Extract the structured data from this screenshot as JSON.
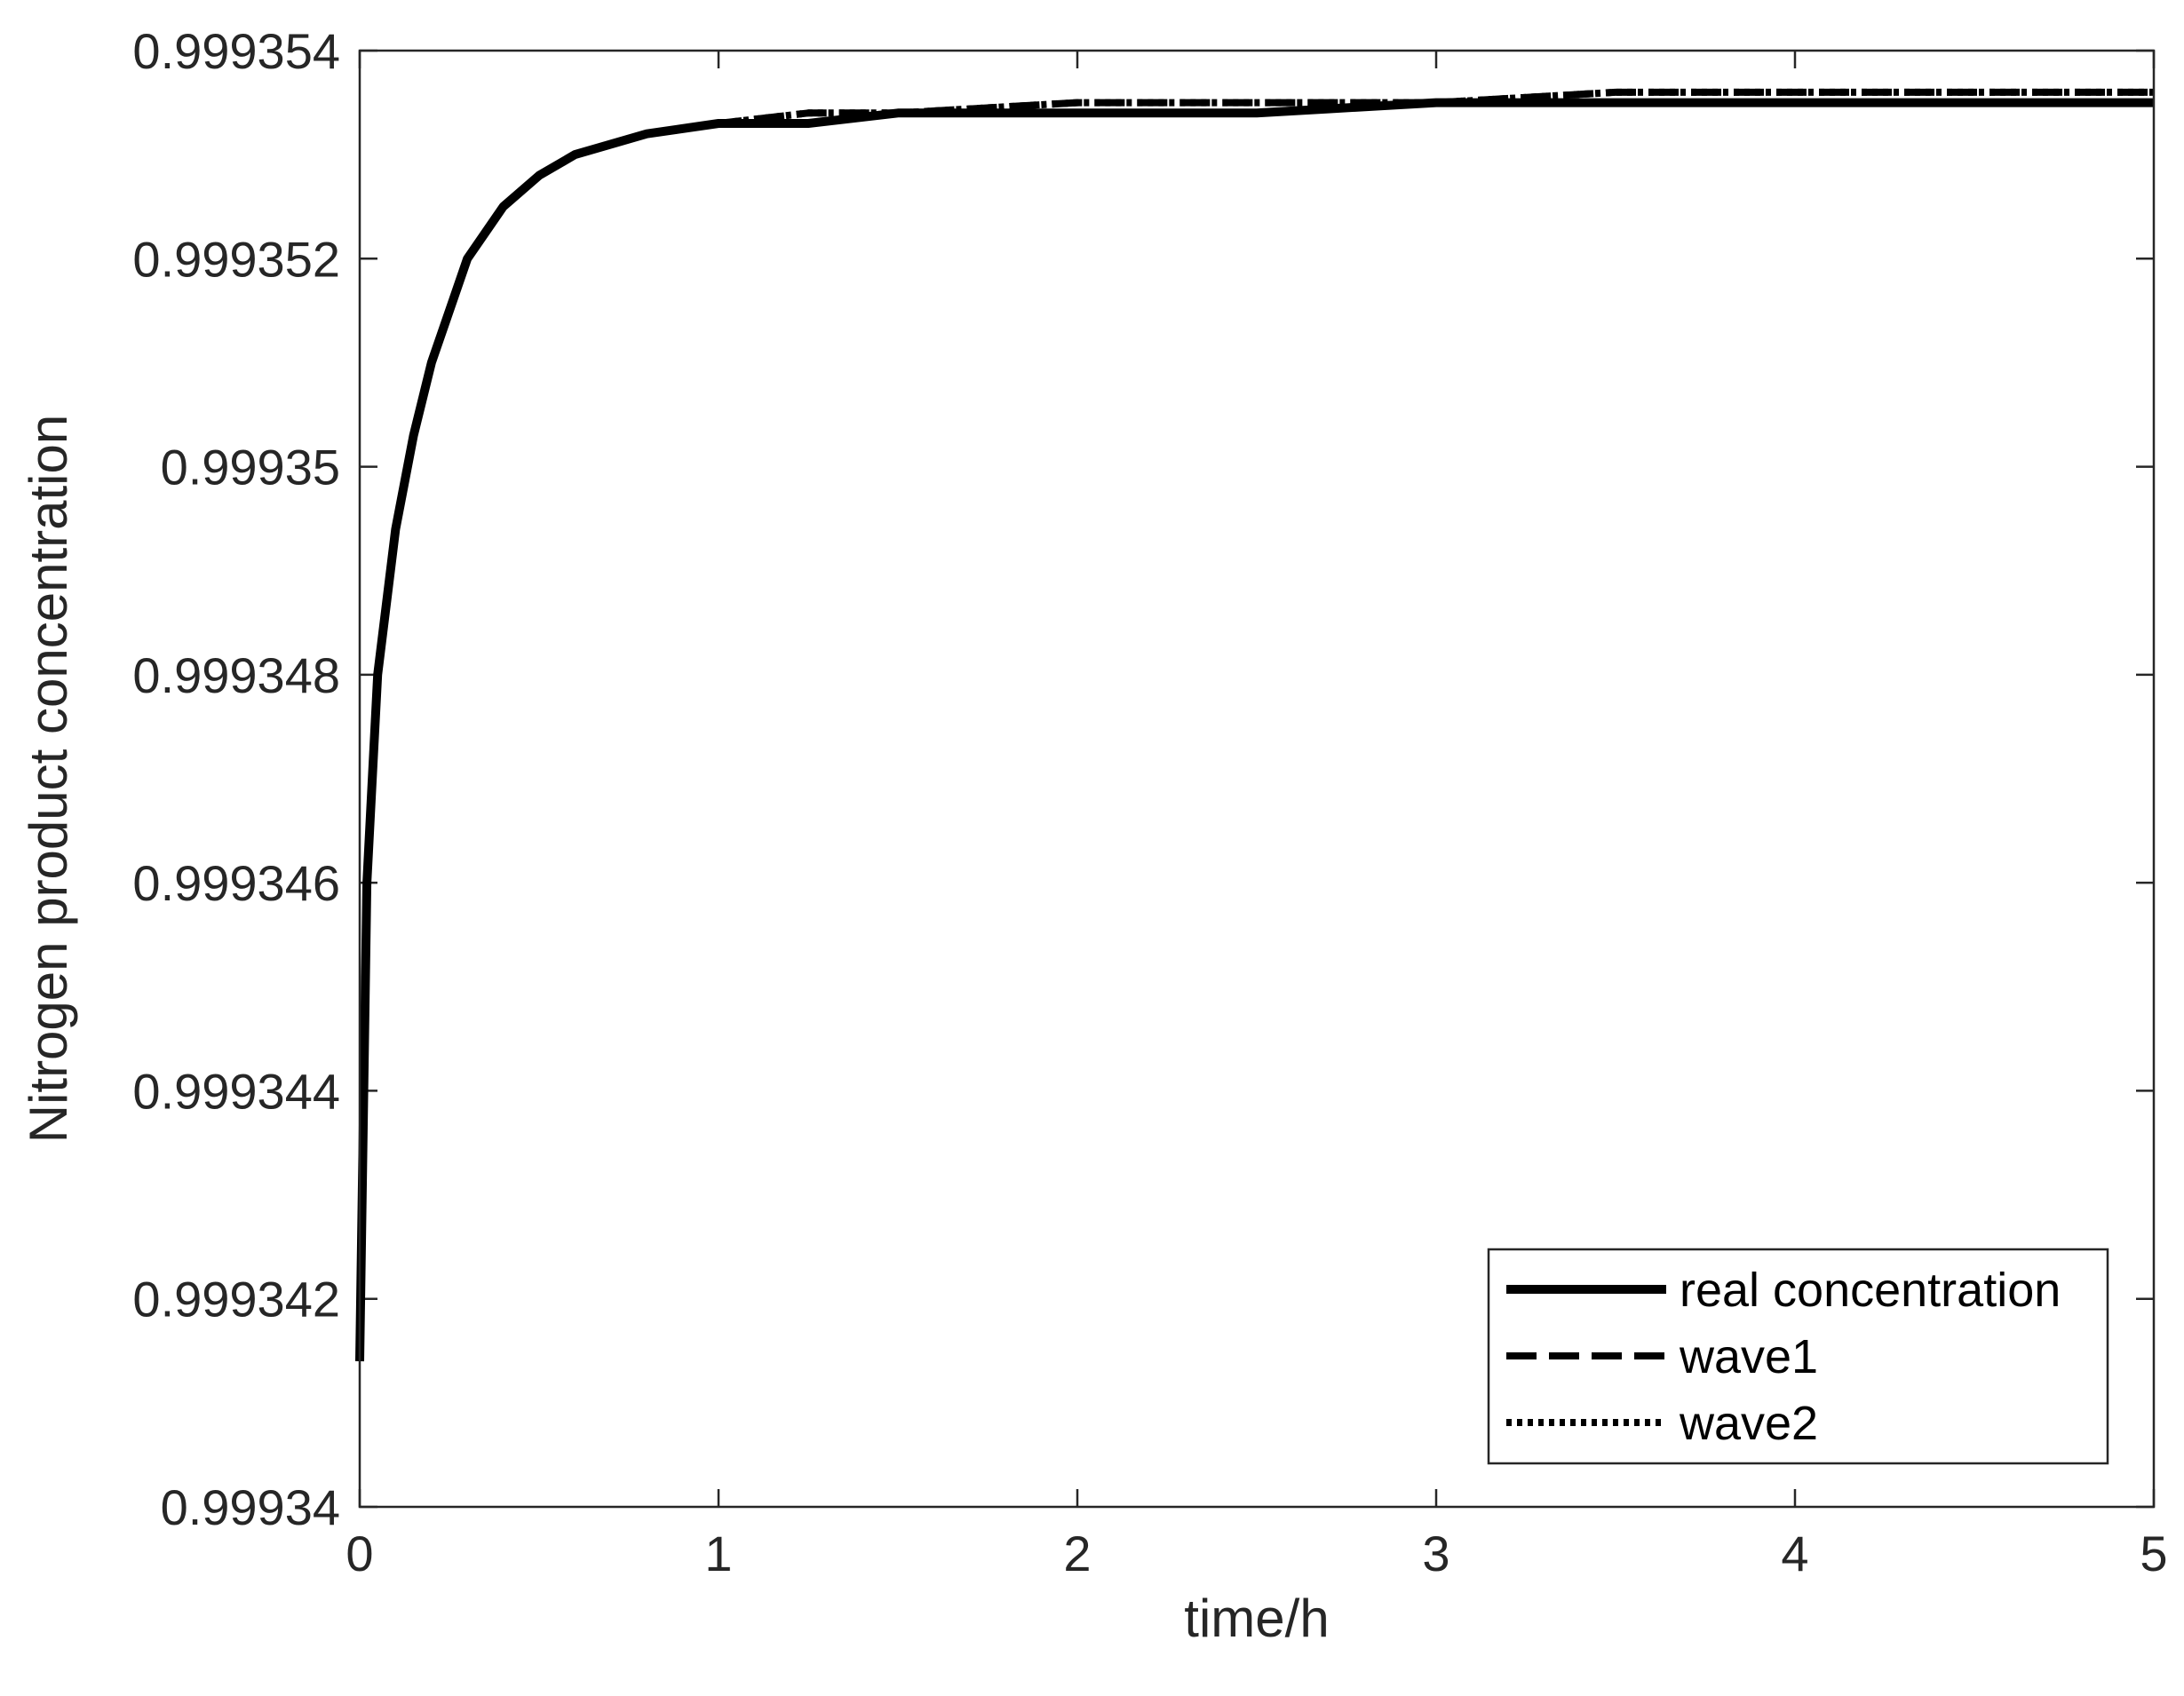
{
  "chart_data": {
    "type": "line",
    "title": "",
    "xlabel": "time/h",
    "ylabel": "Nitrogen product concentration",
    "xlim": [
      0,
      5
    ],
    "ylim": [
      0.99934,
      0.999354
    ],
    "xticks": [
      0,
      1,
      2,
      3,
      4,
      5
    ],
    "xtick_labels": [
      "0",
      "1",
      "2",
      "3",
      "4",
      "5"
    ],
    "yticks": [
      0.99934,
      0.999342,
      0.999344,
      0.999346,
      0.999348,
      0.99935,
      0.999352,
      0.999354
    ],
    "ytick_labels": [
      "0.99934",
      "0.999342",
      "0.999344",
      "0.999346",
      "0.999348",
      "0.99935",
      "0.999352",
      "0.999354"
    ],
    "grid": false,
    "legend_position": "bottom-right",
    "x": [
      0,
      0.02,
      0.05,
      0.1,
      0.15,
      0.2,
      0.3,
      0.4,
      0.5,
      0.6,
      0.8,
      1.0,
      1.25,
      1.5,
      2.0,
      2.5,
      3.0,
      3.5,
      4.0,
      4.5,
      5.0
    ],
    "series": [
      {
        "name": "real concentration",
        "style": "solid",
        "color": "#000000",
        "values": [
          0.9993414,
          0.999346,
          0.999348,
          0.9993494,
          0.9993503,
          0.999351,
          0.999352,
          0.9993525,
          0.9993528,
          0.999353,
          0.9993532,
          0.9993533,
          0.9993533,
          0.9993534,
          0.9993534,
          0.9993534,
          0.9993535,
          0.9993535,
          0.9993535,
          0.9993535,
          0.9993535
        ]
      },
      {
        "name": "wave1",
        "style": "dashed",
        "color": "#000000",
        "values": [
          0.9993414,
          0.999346,
          0.999348,
          0.9993494,
          0.9993503,
          0.999351,
          0.999352,
          0.9993525,
          0.9993528,
          0.999353,
          0.9993532,
          0.9993533,
          0.9993534,
          0.9993534,
          0.9993535,
          0.9993535,
          0.9993535,
          0.9993536,
          0.9993536,
          0.9993536,
          0.9993536
        ]
      },
      {
        "name": "wave2",
        "style": "dotted",
        "color": "#000000",
        "values": [
          0.9993414,
          0.999346,
          0.999348,
          0.9993494,
          0.9993503,
          0.999351,
          0.999352,
          0.9993525,
          0.9993528,
          0.999353,
          0.9993532,
          0.9993533,
          0.9993534,
          0.9993534,
          0.9993535,
          0.9993535,
          0.9993535,
          0.9993536,
          0.9993536,
          0.9993536,
          0.9993536
        ]
      }
    ]
  }
}
